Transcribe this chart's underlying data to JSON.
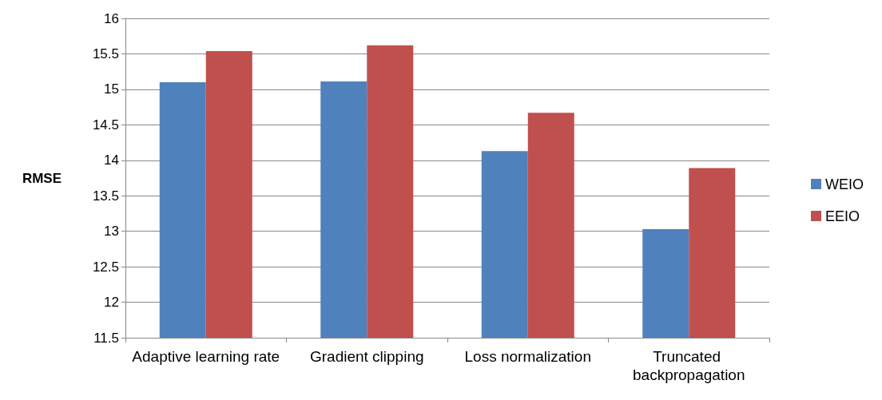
{
  "chart_data": {
    "type": "bar",
    "ylabel": "RMSE",
    "categories": [
      "Adaptive learning rate",
      "Gradient clipping",
      "Loss normalization",
      "Truncated backpropagation"
    ],
    "series": [
      {
        "name": "WEIO",
        "color": "#4f81bd",
        "values": [
          15.1,
          15.11,
          14.13,
          13.03
        ]
      },
      {
        "name": "EEIO",
        "color": "#c0504d",
        "values": [
          15.54,
          15.62,
          14.67,
          13.89
        ]
      }
    ],
    "ylim": [
      11.5,
      16
    ],
    "yticks": [
      11.5,
      12,
      12.5,
      13,
      13.5,
      14,
      14.5,
      15,
      15.5,
      16
    ],
    "grid": "y",
    "legend": "right"
  }
}
